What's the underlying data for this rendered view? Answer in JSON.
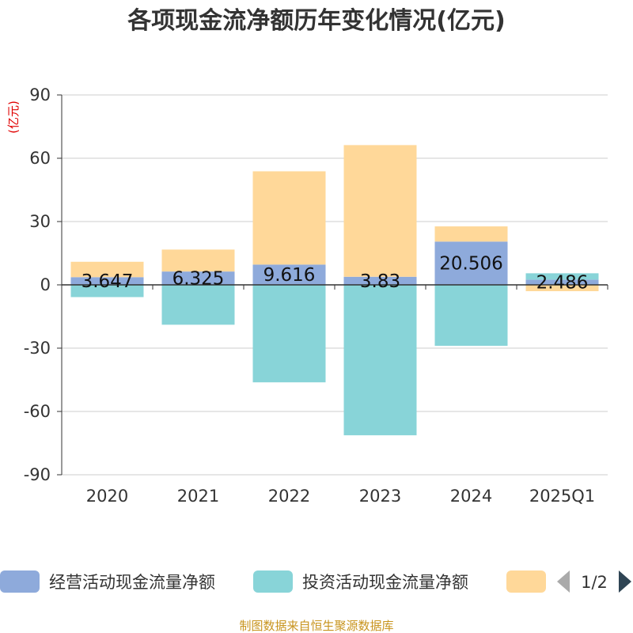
{
  "chart_data": {
    "type": "bar",
    "title": "各项现金流净额历年变化情况(亿元)",
    "ylabel": "(亿元)",
    "xlabel": "",
    "ylim": [
      -90,
      90
    ],
    "yticks": [
      90,
      60,
      30,
      0,
      -30,
      -60,
      -90
    ],
    "categories": [
      "2020",
      "2021",
      "2022",
      "2023",
      "2024",
      "2025Q1"
    ],
    "series": [
      {
        "name": "经营活动现金流量净额",
        "color": "#8eaadb",
        "values": [
          3.647,
          6.325,
          9.616,
          3.83,
          20.506,
          2.486
        ],
        "labels": [
          "3.647",
          "6.325",
          "9.616",
          "3.83",
          "20.506",
          "2.486"
        ]
      },
      {
        "name": "投资活动现金流量净额",
        "color": "#88d4d8",
        "values": [
          -5.8,
          -18.9,
          -46.2,
          -71.3,
          -28.9,
          3.0
        ],
        "labels": null
      },
      {
        "name": "",
        "color": "#ffd899",
        "values": [
          7.3,
          10.4,
          44.2,
          62.4,
          7.2,
          -3.0
        ],
        "labels": null
      }
    ],
    "grid": true,
    "legend_position": "bottom"
  },
  "legend": {
    "page": "1/2"
  },
  "source": "制图数据来自恒生聚源数据库"
}
